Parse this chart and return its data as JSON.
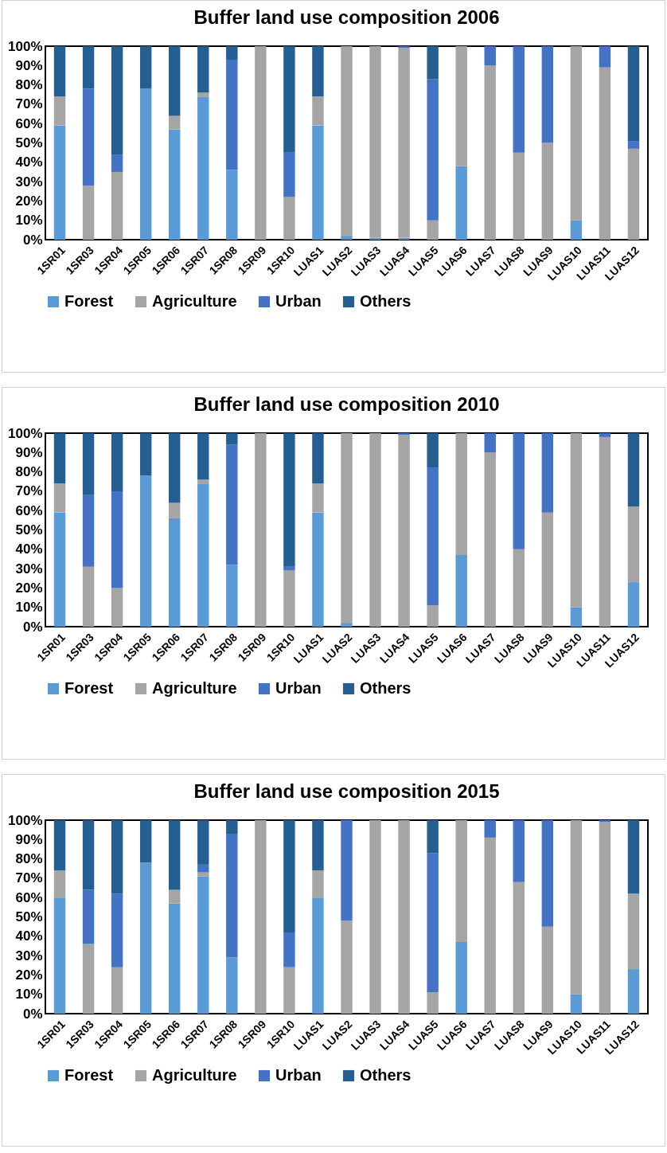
{
  "chart_data": [
    {
      "type": "bar",
      "stacked": true,
      "title": "Buffer land use composition 2006",
      "categories": [
        "1SR01",
        "1SR03",
        "1SR04",
        "1SR05",
        "1SR06",
        "1SR07",
        "1SR08",
        "1SR09",
        "1SR10",
        "LUAS1",
        "LUAS2",
        "LUAS3",
        "LUAS4",
        "LUAS5",
        "LUAS6",
        "LUAS7",
        "LUAS8",
        "LUAS9",
        "LUAS10",
        "LUAS11",
        "LUAS12"
      ],
      "ylim": [
        0,
        100
      ],
      "yticks": [
        {
          "value": 0,
          "label": "0%"
        },
        {
          "value": 10,
          "label": "10%"
        },
        {
          "value": 20,
          "label": "20%"
        },
        {
          "value": 30,
          "label": "30%"
        },
        {
          "value": 40,
          "label": "40%"
        },
        {
          "value": 50,
          "label": "50%"
        },
        {
          "value": 60,
          "label": "60%"
        },
        {
          "value": 70,
          "label": "70%"
        },
        {
          "value": 80,
          "label": "80%"
        },
        {
          "value": 90,
          "label": "90%"
        },
        {
          "value": 100,
          "label": "100%"
        }
      ],
      "legend": "bottom",
      "series": [
        {
          "name": "Forest",
          "color": "#5b9bd5",
          "values": [
            59,
            0,
            0,
            78,
            57,
            74,
            36,
            0,
            0,
            59,
            2,
            1,
            1,
            0,
            38,
            0,
            0,
            0,
            10,
            0,
            0
          ]
        },
        {
          "name": "Agriculture",
          "color": "#a5a5a5",
          "values": [
            15,
            28,
            35,
            0,
            7,
            2,
            0,
            100,
            22,
            15,
            98,
            99,
            98,
            10,
            62,
            90,
            45,
            50,
            90,
            89,
            47
          ]
        },
        {
          "name": "Urban",
          "color": "#4472c4",
          "values": [
            0,
            50,
            9,
            0,
            0,
            0,
            57,
            0,
            23,
            0,
            0,
            0,
            1,
            73,
            0,
            10,
            55,
            50,
            0,
            11,
            4
          ]
        },
        {
          "name": "Others",
          "color": "#255e91",
          "values": [
            26,
            22,
            56,
            22,
            36,
            24,
            7,
            0,
            55,
            26,
            0,
            0,
            0,
            17,
            0,
            0,
            0,
            0,
            0,
            0,
            49
          ]
        }
      ]
    },
    {
      "type": "bar",
      "stacked": true,
      "title": "Buffer land use composition 2010",
      "categories": [
        "1SR01",
        "1SR03",
        "1SR04",
        "1SR05",
        "1SR06",
        "1SR07",
        "1SR08",
        "1SR09",
        "1SR10",
        "LUAS1",
        "LUAS2",
        "LUAS3",
        "LUAS4",
        "LUAS5",
        "LUAS6",
        "LUAS7",
        "LUAS8",
        "LUAS9",
        "LUAS10",
        "LUAS11",
        "LUAS12"
      ],
      "ylim": [
        0,
        100
      ],
      "yticks": [
        {
          "value": 0,
          "label": "0%"
        },
        {
          "value": 10,
          "label": "10%"
        },
        {
          "value": 20,
          "label": "20%"
        },
        {
          "value": 30,
          "label": "30%"
        },
        {
          "value": 40,
          "label": "40%"
        },
        {
          "value": 50,
          "label": "50%"
        },
        {
          "value": 60,
          "label": "60%"
        },
        {
          "value": 70,
          "label": "70%"
        },
        {
          "value": 80,
          "label": "80%"
        },
        {
          "value": 90,
          "label": "90%"
        },
        {
          "value": 100,
          "label": "100%"
        }
      ],
      "legend": "bottom",
      "series": [
        {
          "name": "Forest",
          "color": "#5b9bd5",
          "values": [
            59,
            0,
            0,
            78,
            56,
            74,
            32,
            0,
            0,
            59,
            2,
            0,
            0,
            0,
            37,
            0,
            0,
            0,
            10,
            0,
            23
          ]
        },
        {
          "name": "Agriculture",
          "color": "#a5a5a5",
          "values": [
            15,
            31,
            20,
            0,
            8,
            2,
            0,
            100,
            29,
            15,
            98,
            100,
            99,
            11,
            63,
            90,
            40,
            59,
            90,
            98,
            39
          ]
        },
        {
          "name": "Urban",
          "color": "#4472c4",
          "values": [
            0,
            37,
            50,
            0,
            0,
            0,
            62,
            0,
            2,
            0,
            0,
            0,
            1,
            71,
            0,
            10,
            60,
            41,
            0,
            2,
            0
          ]
        },
        {
          "name": "Others",
          "color": "#255e91",
          "values": [
            26,
            32,
            30,
            22,
            36,
            24,
            6,
            0,
            69,
            26,
            0,
            0,
            0,
            18,
            0,
            0,
            0,
            0,
            0,
            0,
            38
          ]
        }
      ]
    },
    {
      "type": "bar",
      "stacked": true,
      "title": "Buffer land use composition 2015",
      "categories": [
        "1SR01",
        "1SR03",
        "1SR04",
        "1SR05",
        "1SR06",
        "1SR07",
        "1SR08",
        "1SR09",
        "1SR10",
        "LUAS1",
        "LUAS2",
        "LUAS3",
        "LUAS4",
        "LUAS5",
        "LUAS6",
        "LUAS7",
        "LUAS8",
        "LUAS9",
        "LUAS10",
        "LUAS11",
        "LUAS12"
      ],
      "ylim": [
        0,
        100
      ],
      "yticks": [
        {
          "value": 0,
          "label": "0%"
        },
        {
          "value": 10,
          "label": "10%"
        },
        {
          "value": 20,
          "label": "20%"
        },
        {
          "value": 30,
          "label": "30%"
        },
        {
          "value": 40,
          "label": "40%"
        },
        {
          "value": 50,
          "label": "50%"
        },
        {
          "value": 60,
          "label": "60%"
        },
        {
          "value": 70,
          "label": "70%"
        },
        {
          "value": 80,
          "label": "80%"
        },
        {
          "value": 90,
          "label": "90%"
        },
        {
          "value": 100,
          "label": "100%"
        }
      ],
      "legend": "bottom",
      "series": [
        {
          "name": "Forest",
          "color": "#5b9bd5",
          "values": [
            60,
            0,
            0,
            78,
            57,
            71,
            29,
            0,
            0,
            60,
            0,
            0,
            0,
            0,
            37,
            0,
            0,
            0,
            10,
            0,
            23
          ]
        },
        {
          "name": "Agriculture",
          "color": "#a5a5a5",
          "values": [
            14,
            36,
            24,
            0,
            7,
            2,
            0,
            100,
            24,
            14,
            48,
            100,
            100,
            11,
            63,
            91,
            68,
            45,
            90,
            99,
            39
          ]
        },
        {
          "name": "Urban",
          "color": "#4472c4",
          "values": [
            0,
            28,
            38,
            0,
            0,
            4,
            64,
            0,
            18,
            0,
            52,
            0,
            0,
            72,
            0,
            9,
            32,
            55,
            0,
            1,
            0
          ]
        },
        {
          "name": "Others",
          "color": "#255e91",
          "values": [
            26,
            36,
            38,
            22,
            36,
            23,
            7,
            0,
            58,
            26,
            0,
            0,
            0,
            17,
            0,
            0,
            0,
            0,
            0,
            0,
            38
          ]
        }
      ]
    }
  ]
}
